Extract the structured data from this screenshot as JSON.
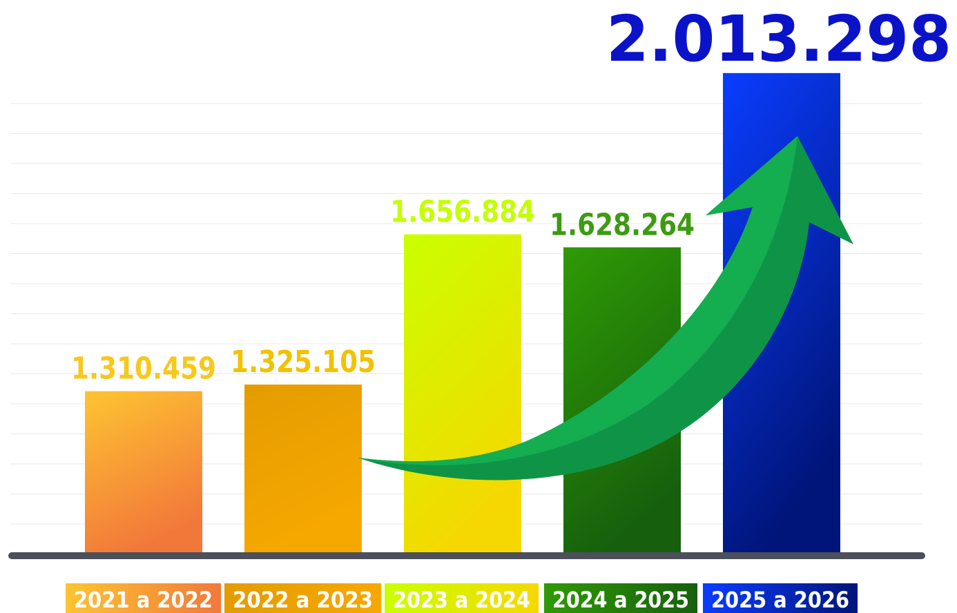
{
  "chart_data": {
    "type": "bar",
    "categories": [
      "2021 a 2022",
      "2022 a 2023",
      "2023 a 2024",
      "2024 a 2025",
      "2025 a 2026"
    ],
    "values": [
      1310459,
      1325105,
      1656884,
      1628264,
      2013298
    ],
    "value_labels": [
      "1.310.459",
      "1.325.105",
      "1.656.884",
      "1.628.264",
      "2.013.298"
    ],
    "colors": [
      [
        "#fdc432",
        "#f2783a"
      ],
      [
        "#e39c00",
        "#f7a800"
      ],
      [
        "#caff00",
        "#f5d800"
      ],
      [
        "#2f9a05",
        "#16600d"
      ],
      [
        "#0a3dff",
        "#00157a"
      ]
    ],
    "label_colors": [
      "#f7c81a",
      "#f2c200",
      "#c4ff00",
      "#3d9b12",
      "#0b13c9"
    ],
    "ylim": [
      950000,
      2100000
    ],
    "grid": true
  }
}
